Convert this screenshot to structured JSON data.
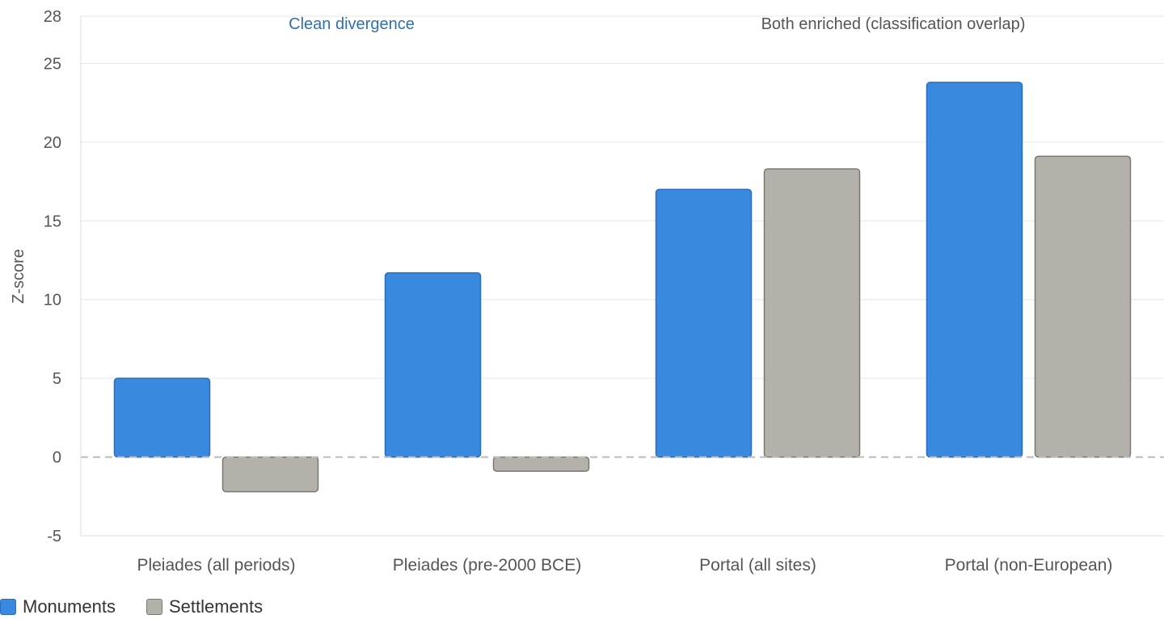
{
  "chart_data": {
    "type": "bar",
    "categories": [
      "Pleiades (all periods)",
      "Pleiades (pre-2000 BCE)",
      "Portal (all sites)",
      "Portal (non-European)"
    ],
    "series": [
      {
        "name": "Monuments",
        "values": [
          5.0,
          11.7,
          17.0,
          23.8
        ],
        "color": "#3889df",
        "stroke": "#2a6fb9"
      },
      {
        "name": "Settlements",
        "values": [
          -2.2,
          -0.9,
          18.3,
          19.1
        ],
        "color": "#b4b1aa",
        "stroke": "#7a7873"
      }
    ],
    "ylabel": "Z-score",
    "ylim": [
      -5,
      28
    ],
    "yticks": [
      -5,
      0,
      5,
      10,
      15,
      20,
      25,
      28
    ],
    "grid": true,
    "zero_line": "dashed",
    "legend": "bottom-left",
    "annotations": [
      {
        "text": "Clean divergence",
        "color": "#2f6fb6"
      },
      {
        "text": "Both enriched (classification overlap)",
        "color": "#555555"
      }
    ]
  }
}
